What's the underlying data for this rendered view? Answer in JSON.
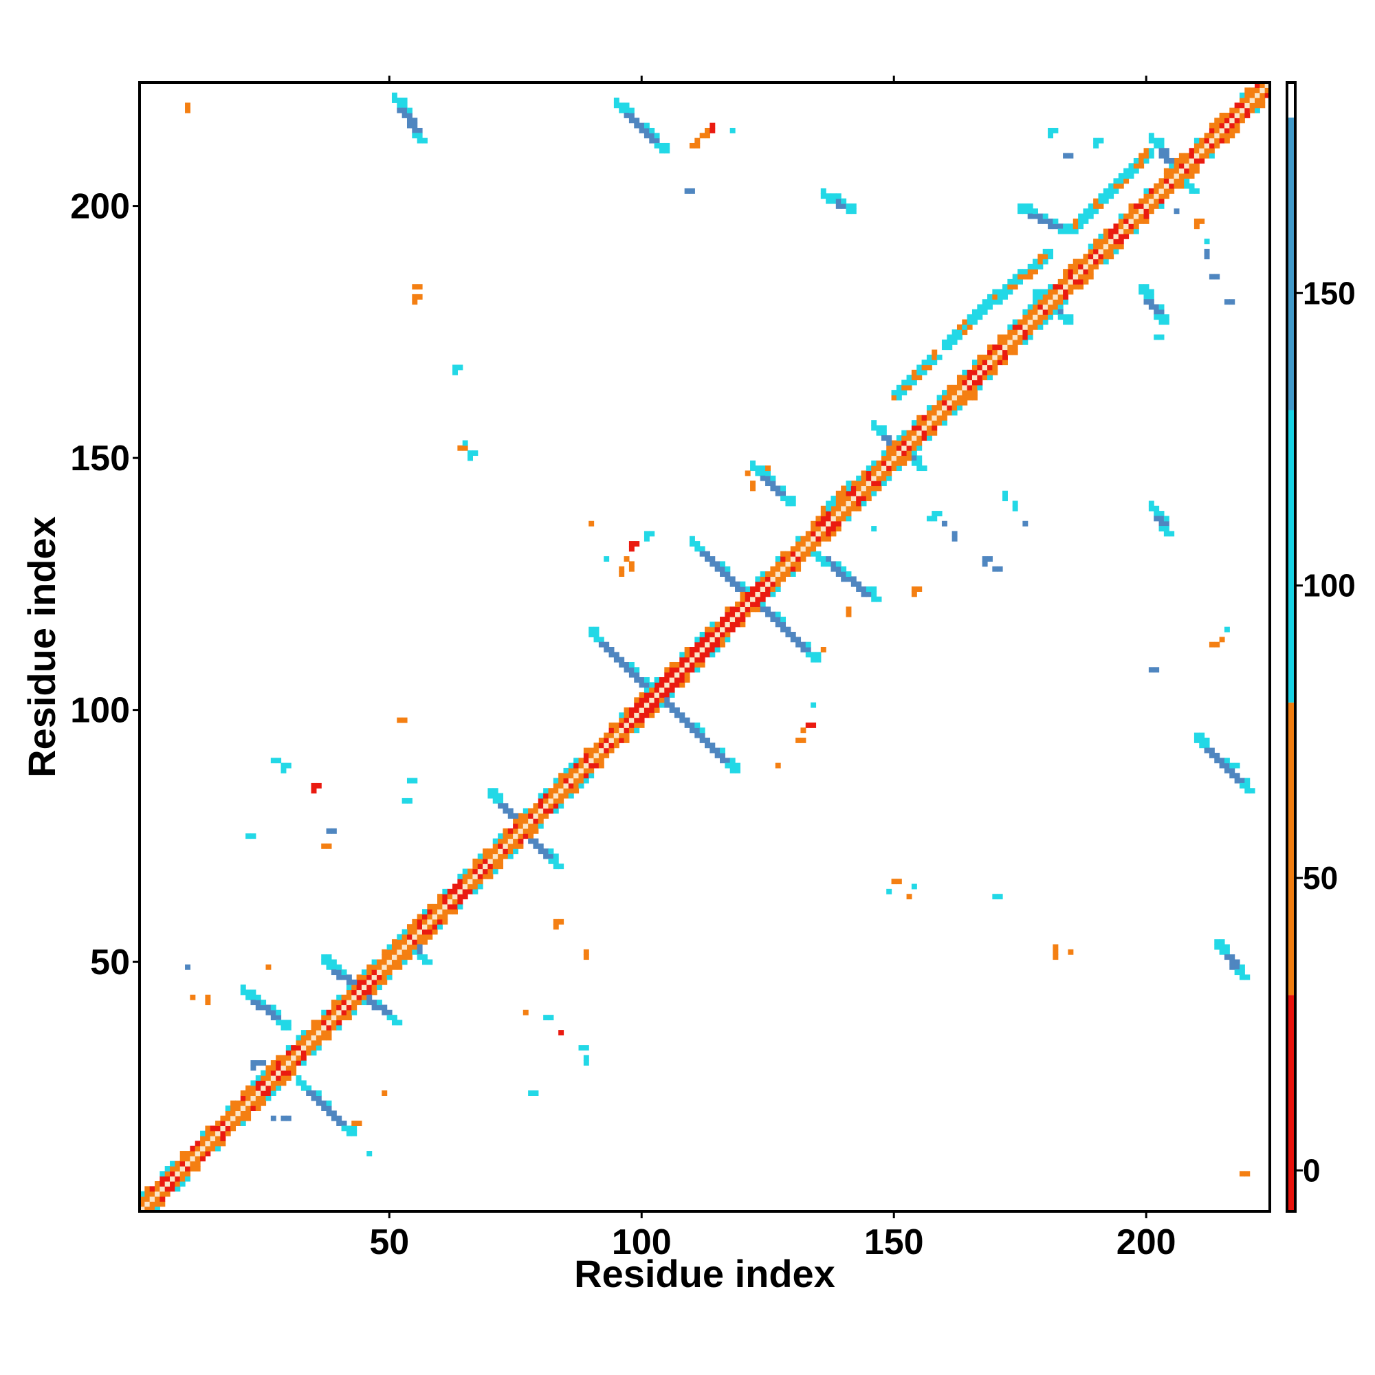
{
  "chart_data": {
    "type": "heatmap",
    "title": "",
    "xlabel": "Residue index",
    "ylabel": "Residue index",
    "xlim": [
      1,
      224
    ],
    "ylim": [
      1,
      224
    ],
    "x_ticks": [
      "50",
      "100",
      "150",
      "200"
    ],
    "y_ticks": [
      "50",
      "100",
      "150",
      "200"
    ],
    "x_tick_values": [
      50,
      100,
      150,
      200
    ],
    "y_tick_values": [
      50,
      100,
      150,
      200
    ],
    "colorbar": {
      "ticks": [
        "0",
        "50",
        "100",
        "150"
      ],
      "tick_values": [
        0,
        50,
        100,
        150
      ],
      "range": [
        -7,
        186
      ],
      "bands": [
        {
          "from": -7,
          "to": 30,
          "color": "#e8120c"
        },
        {
          "from": 30,
          "to": 80,
          "color": "#f07d10"
        },
        {
          "from": 80,
          "to": 180,
          "color": "#18d2e4"
        },
        {
          "from": 180,
          "to": 186,
          "color": "#ffffff"
        }
      ]
    },
    "colors": {
      "red": "#ea1a10",
      "orange": "#f47f12",
      "cyan": "#22d8e6",
      "steelblue": "#4f86c0",
      "diagonal": "#fbe6c8"
    },
    "diagonal": {
      "from": 1,
      "to": 224
    },
    "strands": [
      {
        "name": "antiparallel",
        "segments": [
          [
            [
              21,
              44
            ],
            [
              29,
              37
            ]
          ],
          [
            [
              32,
              26
            ],
            [
              42,
              16
            ]
          ],
          [
            [
              37,
              50
            ],
            [
              51,
              38
            ]
          ],
          [
            [
              51,
              221
            ],
            [
              56,
              213
            ]
          ],
          [
            [
              53,
              55
            ],
            [
              57,
              50
            ]
          ],
          [
            [
              70,
              83
            ],
            [
              83,
              69
            ]
          ],
          [
            [
              90,
              115
            ],
            [
              118,
              88
            ]
          ],
          [
            [
              95,
              220
            ],
            [
              104,
              211
            ]
          ],
          [
            [
              110,
              133
            ],
            [
              134,
              110
            ]
          ],
          [
            [
              122,
              148
            ],
            [
              129,
              141
            ]
          ],
          [
            [
              135,
              130
            ],
            [
              146,
              122
            ]
          ],
          [
            [
              136,
              202
            ],
            [
              141,
              199
            ]
          ],
          [
            [
              146,
              156
            ],
            [
              155,
              148
            ]
          ],
          [
            [
              175,
              199
            ],
            [
              184,
              195
            ]
          ],
          [
            [
              178,
              182
            ],
            [
              184,
              177
            ]
          ],
          [
            [
              199,
              183
            ],
            [
              203,
              177
            ]
          ],
          [
            [
              201,
              140
            ],
            [
              204,
              135
            ]
          ],
          [
            [
              201,
              213
            ],
            [
              209,
              203
            ]
          ],
          [
            [
              210,
              94
            ],
            [
              220,
              84
            ]
          ],
          [
            [
              214,
              53
            ],
            [
              219,
              47
            ]
          ]
        ]
      },
      {
        "name": "helix",
        "segments": [
          [
            [
              136,
              139
            ],
            [
              146,
              148
            ]
          ],
          [
            [
              150,
              162
            ],
            [
              158,
              170
            ]
          ],
          [
            [
              160,
              172
            ],
            [
              170,
              182
            ]
          ],
          [
            [
              170,
              181
            ],
            [
              180,
              190
            ]
          ],
          [
            [
              185,
              195
            ],
            [
              200,
              210
            ]
          ]
        ]
      },
      {
        "name": "isolated",
        "points": [
          [
            10,
            220,
            "orange"
          ],
          [
            11,
            43,
            "orange"
          ],
          [
            14,
            43,
            "orange"
          ],
          [
            10,
            49,
            "steelblue"
          ],
          [
            23,
            30,
            "steelblue"
          ],
          [
            24,
            30,
            "steelblue"
          ],
          [
            22,
            75,
            "cyan"
          ],
          [
            26,
            49,
            "orange"
          ],
          [
            27,
            19,
            "steelblue"
          ],
          [
            29,
            19,
            "steelblue"
          ],
          [
            27,
            90,
            "cyan"
          ],
          [
            29,
            89,
            "cyan"
          ],
          [
            35,
            85,
            "red"
          ],
          [
            37,
            73,
            "orange"
          ],
          [
            38,
            76,
            "steelblue"
          ],
          [
            42,
            16,
            "orange"
          ],
          [
            43,
            18,
            "orange"
          ],
          [
            46,
            12,
            "cyan"
          ],
          [
            49,
            24,
            "orange"
          ],
          [
            52,
            98,
            "orange"
          ],
          [
            53,
            82,
            "cyan"
          ],
          [
            54,
            86,
            "cyan"
          ],
          [
            55,
            184,
            "orange"
          ],
          [
            55,
            182,
            "orange"
          ],
          [
            63,
            168,
            "cyan"
          ],
          [
            64,
            152,
            "orange"
          ],
          [
            65,
            153,
            "cyan"
          ],
          [
            66,
            151,
            "cyan"
          ],
          [
            77,
            40,
            "orange"
          ],
          [
            78,
            24,
            "cyan"
          ],
          [
            81,
            39,
            "cyan"
          ],
          [
            83,
            58,
            "orange"
          ],
          [
            84,
            36,
            "red"
          ],
          [
            88,
            33,
            "cyan"
          ],
          [
            89,
            31,
            "cyan"
          ],
          [
            89,
            52,
            "orange"
          ],
          [
            90,
            137,
            "orange"
          ],
          [
            93,
            130,
            "cyan"
          ],
          [
            96,
            128,
            "orange"
          ],
          [
            97,
            130,
            "orange"
          ],
          [
            98,
            129,
            "orange"
          ],
          [
            98,
            133,
            "red"
          ],
          [
            101,
            135,
            "cyan"
          ],
          [
            110,
            212,
            "orange"
          ],
          [
            111,
            213,
            "orange"
          ],
          [
            112,
            214,
            "orange"
          ],
          [
            113,
            215,
            "orange"
          ],
          [
            114,
            216,
            "red"
          ],
          [
            118,
            215,
            "cyan"
          ],
          [
            109,
            203,
            "steelblue"
          ],
          [
            121,
            147,
            "orange"
          ],
          [
            122,
            145,
            "orange"
          ],
          [
            124,
            148,
            "orange"
          ],
          [
            127,
            89,
            "orange"
          ],
          [
            131,
            94,
            "orange"
          ],
          [
            132,
            96,
            "orange"
          ],
          [
            133,
            97,
            "red"
          ],
          [
            134,
            101,
            "cyan"
          ],
          [
            136,
            112,
            "orange"
          ],
          [
            141,
            120,
            "orange"
          ],
          [
            142,
            145,
            "red"
          ],
          [
            146,
            136,
            "cyan"
          ],
          [
            149,
            64,
            "cyan"
          ],
          [
            150,
            66,
            "orange"
          ],
          [
            154,
            124,
            "orange"
          ],
          [
            155,
            124,
            "orange"
          ],
          [
            157,
            138,
            "cyan"
          ],
          [
            158,
            139,
            "cyan"
          ],
          [
            160,
            137,
            "steelblue"
          ],
          [
            162,
            135,
            "steelblue"
          ],
          [
            163,
            164,
            "orange"
          ],
          [
            165,
            162,
            "orange"
          ],
          [
            168,
            130,
            "steelblue"
          ],
          [
            170,
            128,
            "steelblue"
          ],
          [
            172,
            143,
            "cyan"
          ],
          [
            174,
            141,
            "cyan"
          ],
          [
            176,
            137,
            "steelblue"
          ],
          [
            170,
            63,
            "cyan"
          ],
          [
            182,
            53,
            "orange"
          ],
          [
            182,
            51,
            "orange"
          ],
          [
            185,
            52,
            "orange"
          ],
          [
            181,
            215,
            "cyan"
          ],
          [
            184,
            210,
            "steelblue"
          ],
          [
            190,
            213,
            "cyan"
          ],
          [
            202,
            174,
            "cyan"
          ],
          [
            206,
            199,
            "steelblue"
          ],
          [
            210,
            197,
            "orange"
          ],
          [
            212,
            193,
            "cyan"
          ],
          [
            212,
            191,
            "steelblue"
          ],
          [
            213,
            186,
            "steelblue"
          ],
          [
            216,
            181,
            "steelblue"
          ],
          [
            219,
            8,
            "orange"
          ],
          [
            201,
            108,
            "steelblue"
          ],
          [
            213,
            113,
            "orange"
          ],
          [
            215,
            114,
            "orange"
          ],
          [
            216,
            116,
            "cyan"
          ],
          [
            217,
            89,
            "cyan"
          ],
          [
            153,
            63,
            "orange"
          ],
          [
            154,
            65,
            "cyan"
          ]
        ]
      }
    ]
  }
}
